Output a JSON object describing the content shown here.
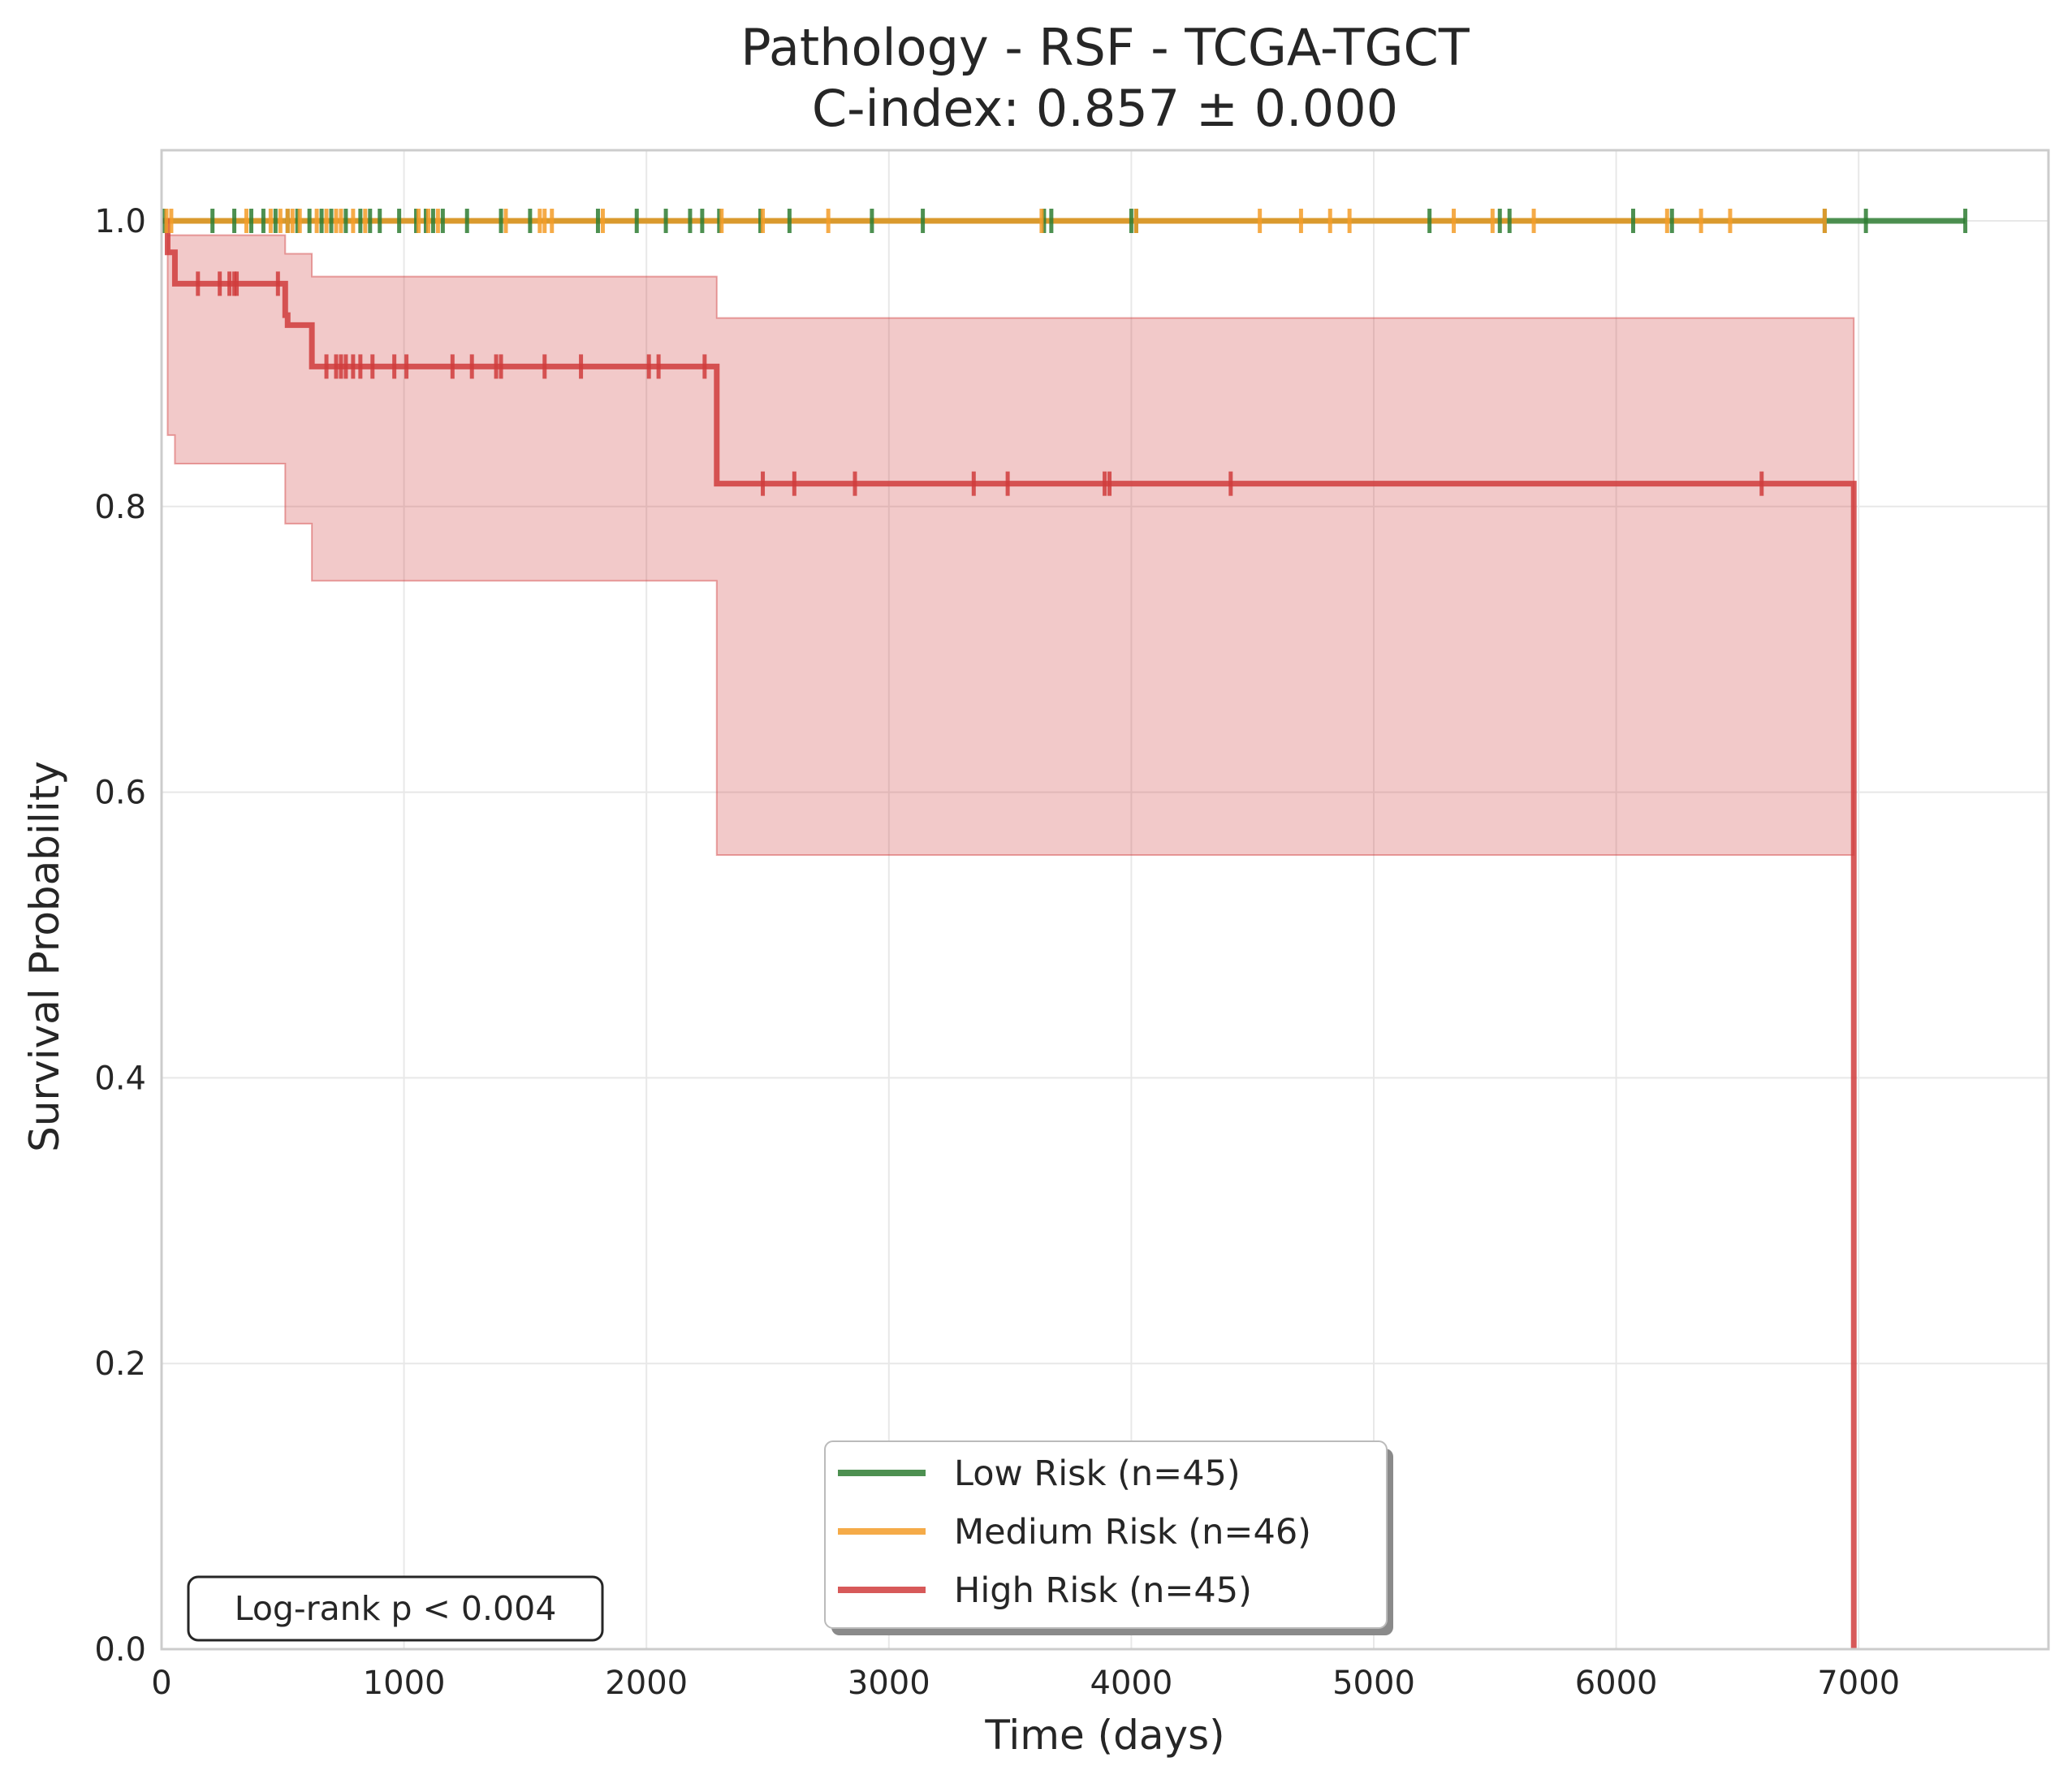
{
  "chart_data": {
    "type": "line",
    "title": "Pathology - RSF - TCGA-TGCT",
    "subtitle": "C-index: 0.857 ± 0.000",
    "xlabel": "Time (days)",
    "ylabel": "Survival Probability",
    "xlim": [
      0,
      7800
    ],
    "ylim": [
      0,
      1.05
    ],
    "x_ticks": [
      0,
      1000,
      2000,
      3000,
      4000,
      5000,
      6000,
      7000
    ],
    "y_ticks": [
      0.0,
      0.2,
      0.4,
      0.6,
      0.8,
      1.0
    ],
    "x_tick_labels": [
      "0",
      "1000",
      "2000",
      "3000",
      "4000",
      "5000",
      "6000",
      "7000"
    ],
    "y_tick_labels": [
      "0.0",
      "0.2",
      "0.4",
      "0.6",
      "0.8",
      "1.0"
    ],
    "grid": true,
    "legend_position": "bottom-center",
    "annotation": "Log-rank p < 0.004",
    "series": [
      {
        "name": "Low Risk (n=45)",
        "color": "#2e7d32",
        "steps": [
          [
            0,
            1.0
          ],
          [
            7440,
            1.0
          ]
        ],
        "censor_times": [
          10,
          210,
          300,
          370,
          420,
          470,
          520,
          560,
          610,
          660,
          700,
          760,
          820,
          860,
          900,
          980,
          1050,
          1090,
          1120,
          1160,
          1260,
          1400,
          1520,
          1800,
          1960,
          2080,
          2180,
          2230,
          2300,
          2470,
          2590,
          2930,
          3140,
          3640,
          3670,
          4000,
          4020,
          5230,
          5520,
          5560,
          6070,
          6230,
          6860,
          7030,
          7440
        ]
      },
      {
        "name": "Medium Risk (n=46)",
        "color": "#f39c28",
        "steps": [
          [
            0,
            1.0
          ],
          [
            6860,
            1.0
          ]
        ],
        "censor_times": [
          20,
          40,
          350,
          450,
          490,
          520,
          540,
          570,
          640,
          680,
          720,
          740,
          790,
          840,
          1060,
          1100,
          1140,
          1420,
          1560,
          1580,
          1610,
          1820,
          2310,
          2480,
          2750,
          3630,
          4020,
          4530,
          4700,
          4820,
          4900,
          5330,
          5490,
          5660,
          6210,
          6350,
          6470,
          6860
        ]
      },
      {
        "name": "High Risk (n=45)",
        "color": "#d03c3c",
        "steps": [
          [
            0,
            1.0
          ],
          [
            25,
            0.978
          ],
          [
            55,
            0.956
          ],
          [
            510,
            0.934
          ],
          [
            520,
            0.927
          ],
          [
            620,
            0.898
          ],
          [
            2290,
            0.816
          ],
          [
            6980,
            0.0
          ]
        ],
        "ci": [
          [
            0,
            1.0,
            1.0
          ],
          [
            25,
            0.85,
            0.99
          ],
          [
            55,
            0.83,
            0.99
          ],
          [
            510,
            0.788,
            0.977
          ],
          [
            620,
            0.748,
            0.961
          ],
          [
            2290,
            0.556,
            0.932
          ],
          [
            6980,
            0.556,
            0.932
          ]
        ],
        "ci_end": 6980,
        "censor_times": [
          150,
          240,
          280,
          300,
          310,
          480,
          680,
          720,
          740,
          760,
          790,
          820,
          870,
          960,
          1010,
          1200,
          1280,
          1380,
          1400,
          1580,
          1730,
          2010,
          2050,
          2240,
          2480,
          2610,
          2860,
          3350,
          3490,
          3890,
          3910,
          4410,
          6600
        ]
      }
    ]
  }
}
